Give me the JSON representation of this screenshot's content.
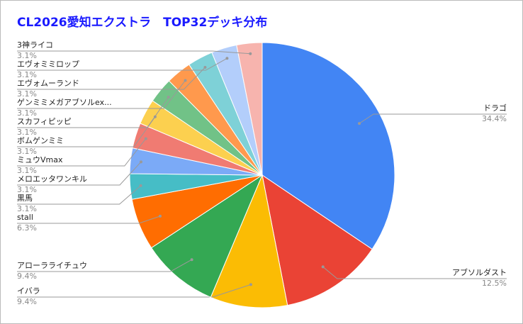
{
  "chart_data": {
    "type": "pie",
    "title": "CL2026愛知エクストラ　TOP32デッキ分布",
    "categories": [
      "ドラゴ",
      "アブソルダスト",
      "イバラ",
      "アローラライチュウ",
      "stall",
      "黒馬",
      "メロエッタワンキル",
      "ミュウVmax",
      "ボムゲンミミ",
      "スカフィピッピ",
      "ゲンミミメガアブソルex...",
      "エヴォムーランド",
      "エヴォミミロップ",
      "3神ライコ"
    ],
    "values": [
      34.4,
      12.5,
      9.4,
      9.4,
      6.3,
      3.1,
      3.1,
      3.1,
      3.1,
      3.1,
      3.1,
      3.1,
      3.1,
      3.1
    ],
    "value_labels": [
      "34.4%",
      "12.5%",
      "9.4%",
      "9.4%",
      "6.3%",
      "3.1%",
      "3.1%",
      "3.1%",
      "3.1%",
      "3.1%",
      "3.1%",
      "3.1%",
      "3.1%",
      "3.1%"
    ],
    "colors": [
      "#4285f4",
      "#ea4335",
      "#fbbc04",
      "#34a853",
      "#ff6d01",
      "#46bdc6",
      "#7baaf7",
      "#f07b72",
      "#fcd04f",
      "#71c287",
      "#ff994d",
      "#7ed1d7",
      "#b3cefb",
      "#f7b4ae"
    ]
  }
}
